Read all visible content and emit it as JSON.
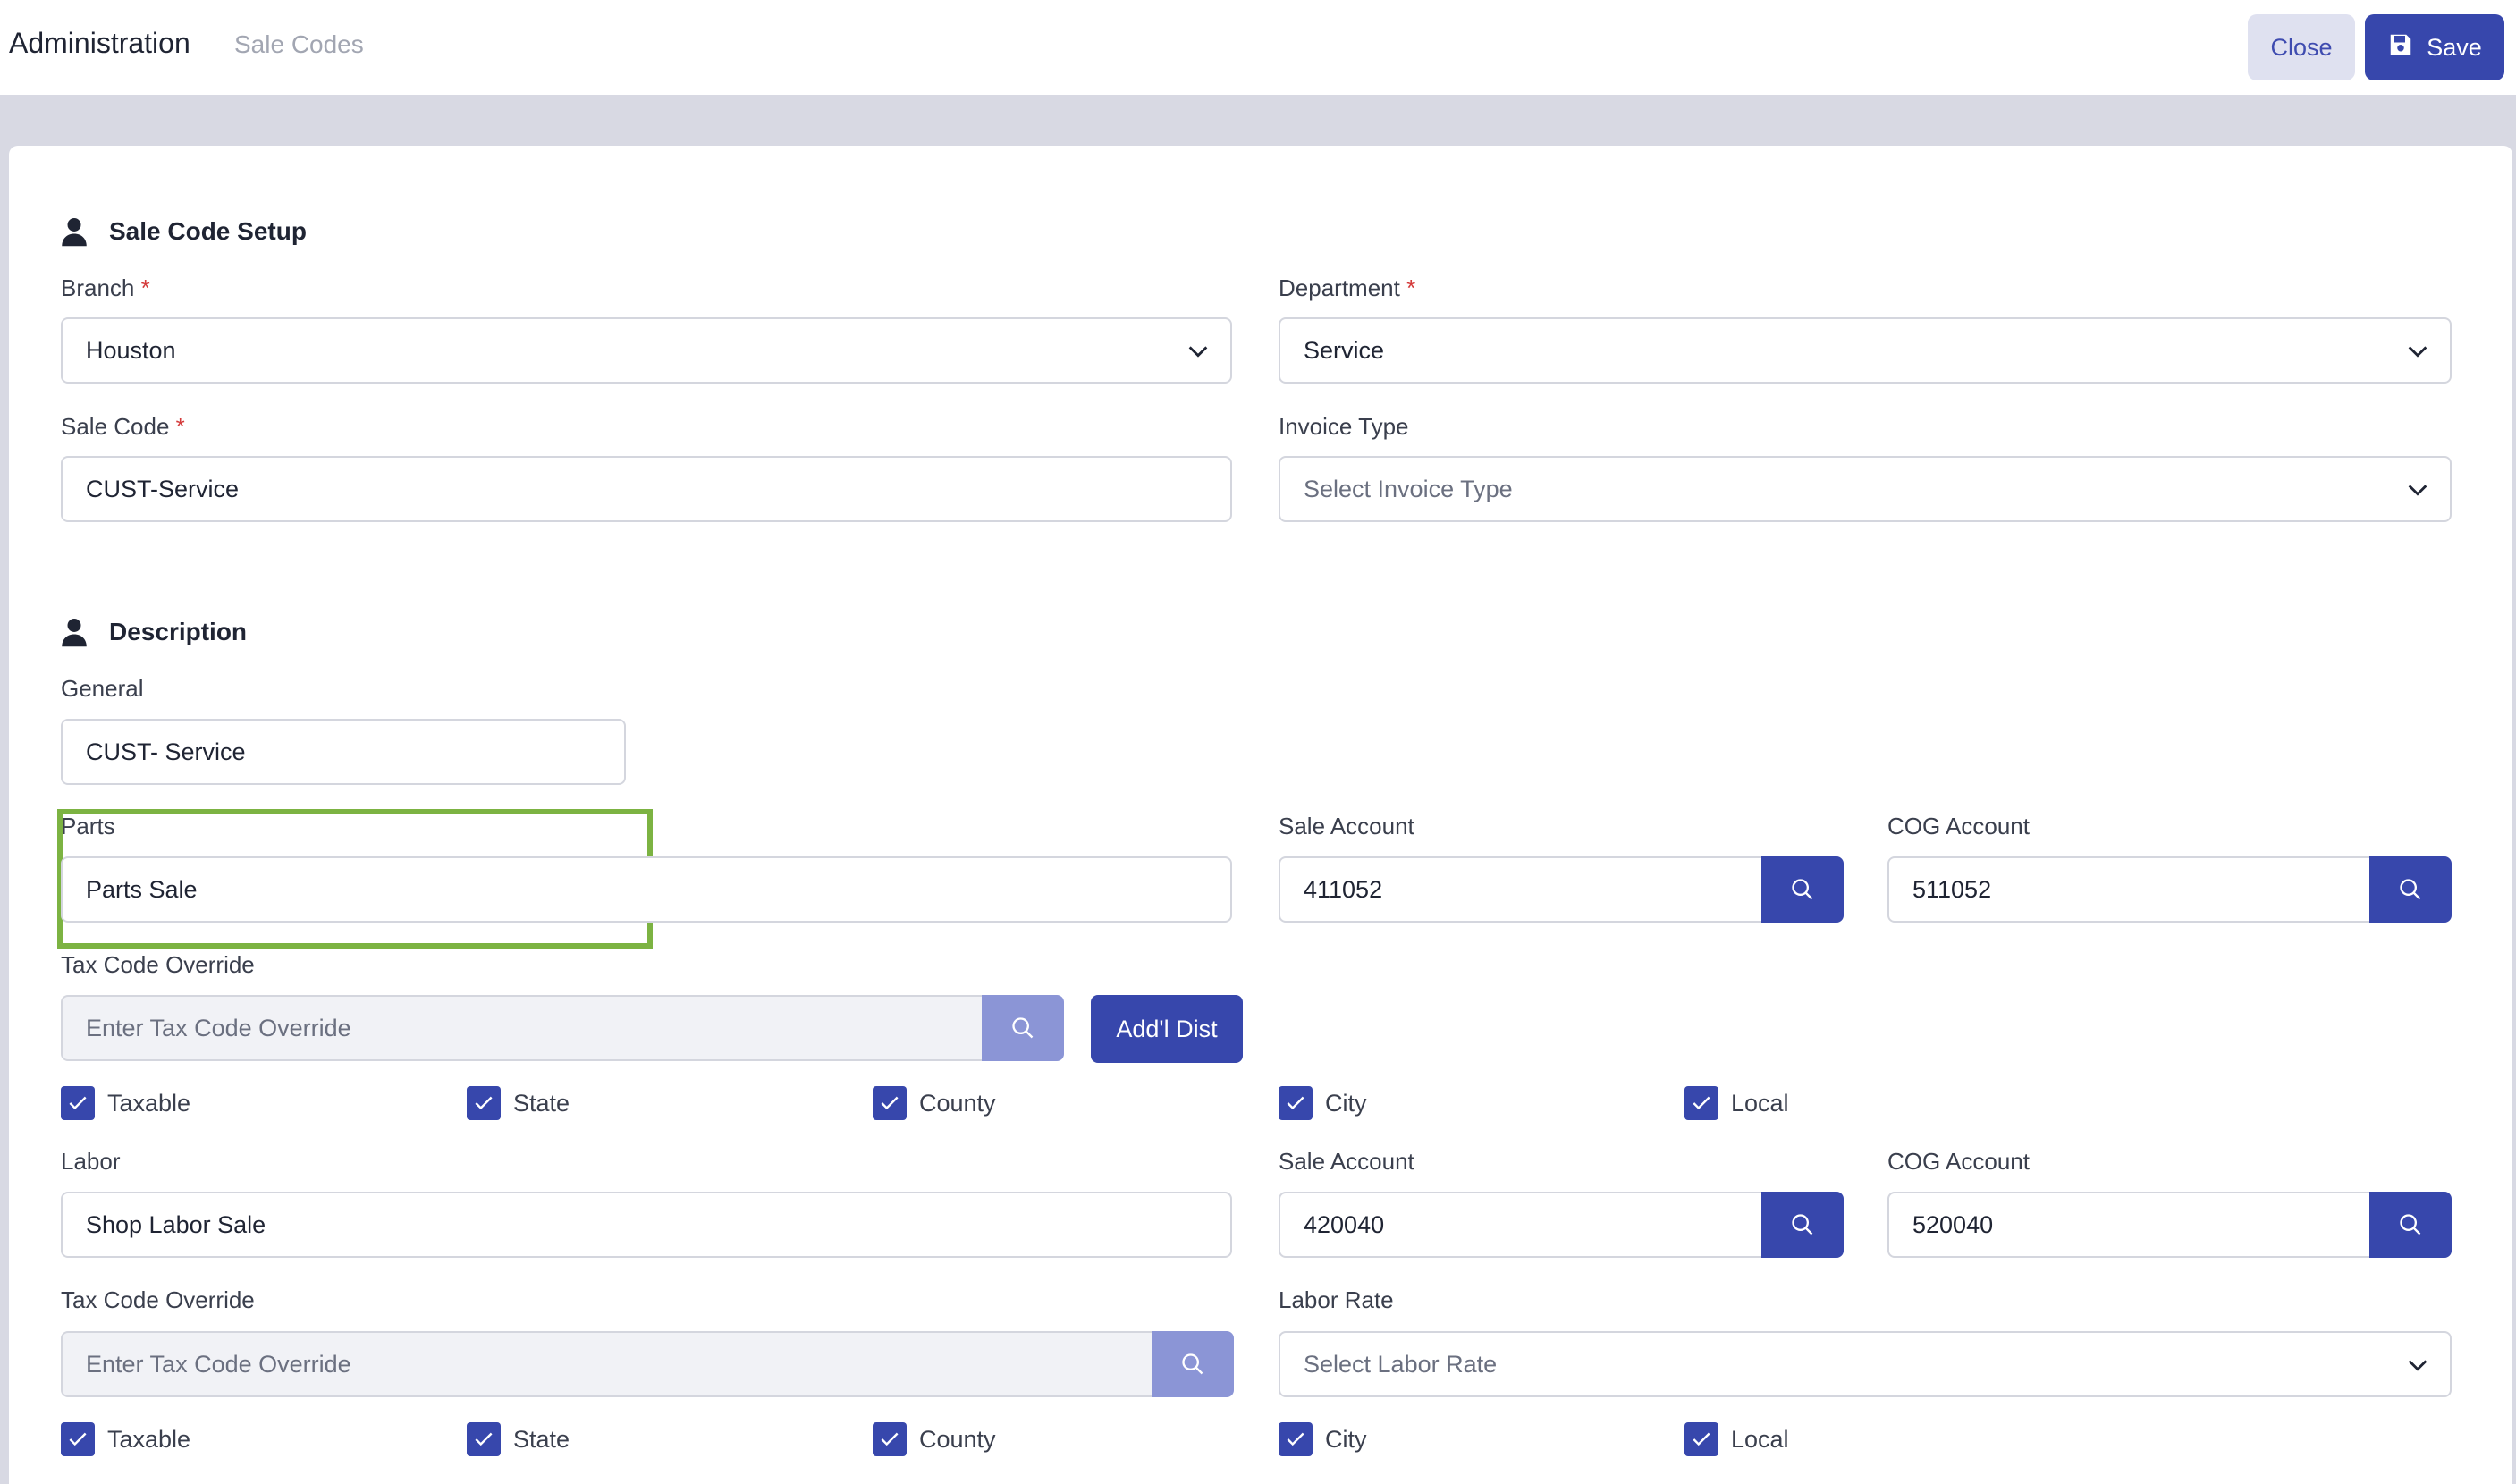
{
  "header": {
    "title": "Administration",
    "subtitle": "Sale Codes",
    "close_label": "Close",
    "save_label": "Save"
  },
  "setup": {
    "title": "Sale Code Setup",
    "branch_label": "Branch",
    "branch_value": "Houston",
    "department_label": "Department",
    "department_value": "Service",
    "sale_code_label": "Sale Code",
    "sale_code_value": "CUST-Service",
    "invoice_type_label": "Invoice Type",
    "invoice_type_placeholder": "Select Invoice Type",
    "required_mark": "*"
  },
  "description": {
    "title": "Description",
    "general_label": "General",
    "general_value": "CUST- Service",
    "parts_label": "Parts",
    "parts_value": "Parts Sale",
    "parts_sale_account_label": "Sale Account",
    "parts_sale_account_value": "411052",
    "parts_cog_account_label": "COG Account",
    "parts_cog_account_value": "511052",
    "parts_tax_label": "Tax Code Override",
    "parts_tax_placeholder": "Enter Tax Code Override",
    "addl_dist_label": "Add'l Dist",
    "checkboxes": [
      "Taxable",
      "State",
      "County",
      "City",
      "Local"
    ],
    "labor_label": "Labor",
    "labor_value": "Shop Labor Sale",
    "labor_sale_account_label": "Sale Account",
    "labor_sale_account_value": "420040",
    "labor_cog_account_label": "COG Account",
    "labor_cog_account_value": "520040",
    "labor_tax_label": "Tax Code Override",
    "labor_tax_placeholder": "Enter Tax Code Override",
    "labor_rate_label": "Labor Rate",
    "labor_rate_placeholder": "Select Labor Rate"
  },
  "colors": {
    "primary": "#3747ac",
    "highlight": "#7cb342",
    "required": "#d43b3b"
  }
}
